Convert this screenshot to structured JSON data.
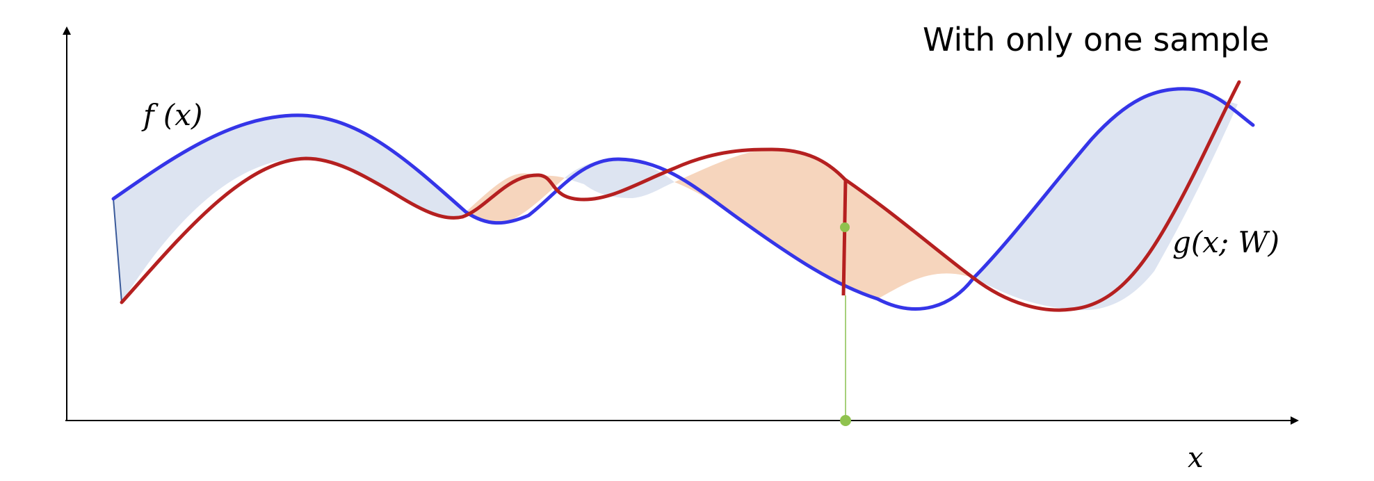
{
  "title": "With only one sample",
  "labels": {
    "f": "f (x)",
    "g": "g(x; W)",
    "x_axis": "x"
  },
  "colors": {
    "f_curve": "#3535e8",
    "g_curve": "#b52020",
    "region_f_above": "#dde4f1",
    "region_g_above": "#f6d5bd",
    "sample_marker": "#8fc24e",
    "axes": "#000000"
  },
  "sample": {
    "description_visible": false
  }
}
